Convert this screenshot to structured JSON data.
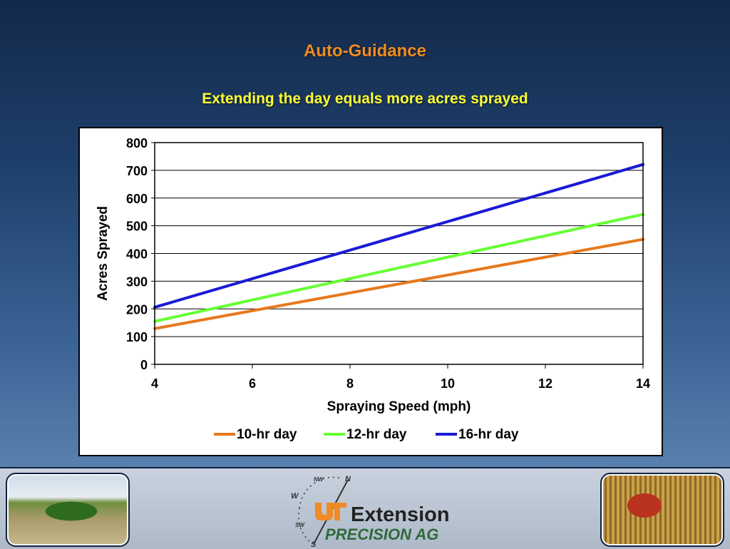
{
  "slide": {
    "title": "Auto-Guidance",
    "subtitle": "Extending the day equals more acres sprayed"
  },
  "footer": {
    "logo_text": "Extension",
    "logo_tagline": "PRECISION AG",
    "compass_labels": [
      "N",
      "NW",
      "W",
      "SW",
      "S"
    ],
    "colors": {
      "ut_orange": "#f08a24",
      "tagline_green": "#2f6a3a"
    }
  },
  "chart_data": {
    "type": "line",
    "title": "",
    "xlabel": "Spraying Speed (mph)",
    "ylabel": "Acres Sprayed",
    "xlim": [
      4,
      14
    ],
    "ylim": [
      0,
      800
    ],
    "x_ticks": [
      "4",
      "6",
      "8",
      "10",
      "12",
      "14"
    ],
    "y_ticks": [
      "0",
      "100",
      "200",
      "300",
      "400",
      "500",
      "600",
      "700",
      "800"
    ],
    "grid": "horizontal",
    "legend_position": "bottom",
    "x": [
      4,
      14
    ],
    "series": [
      {
        "name": "10-hr day",
        "color": "#e6791e",
        "values": [
          129,
          451
        ]
      },
      {
        "name": "12-hr day",
        "color": "#66ff33",
        "values": [
          155,
          541
        ]
      },
      {
        "name": "16-hr day",
        "color": "#1a1ad6",
        "values": [
          206,
          721
        ]
      }
    ]
  }
}
